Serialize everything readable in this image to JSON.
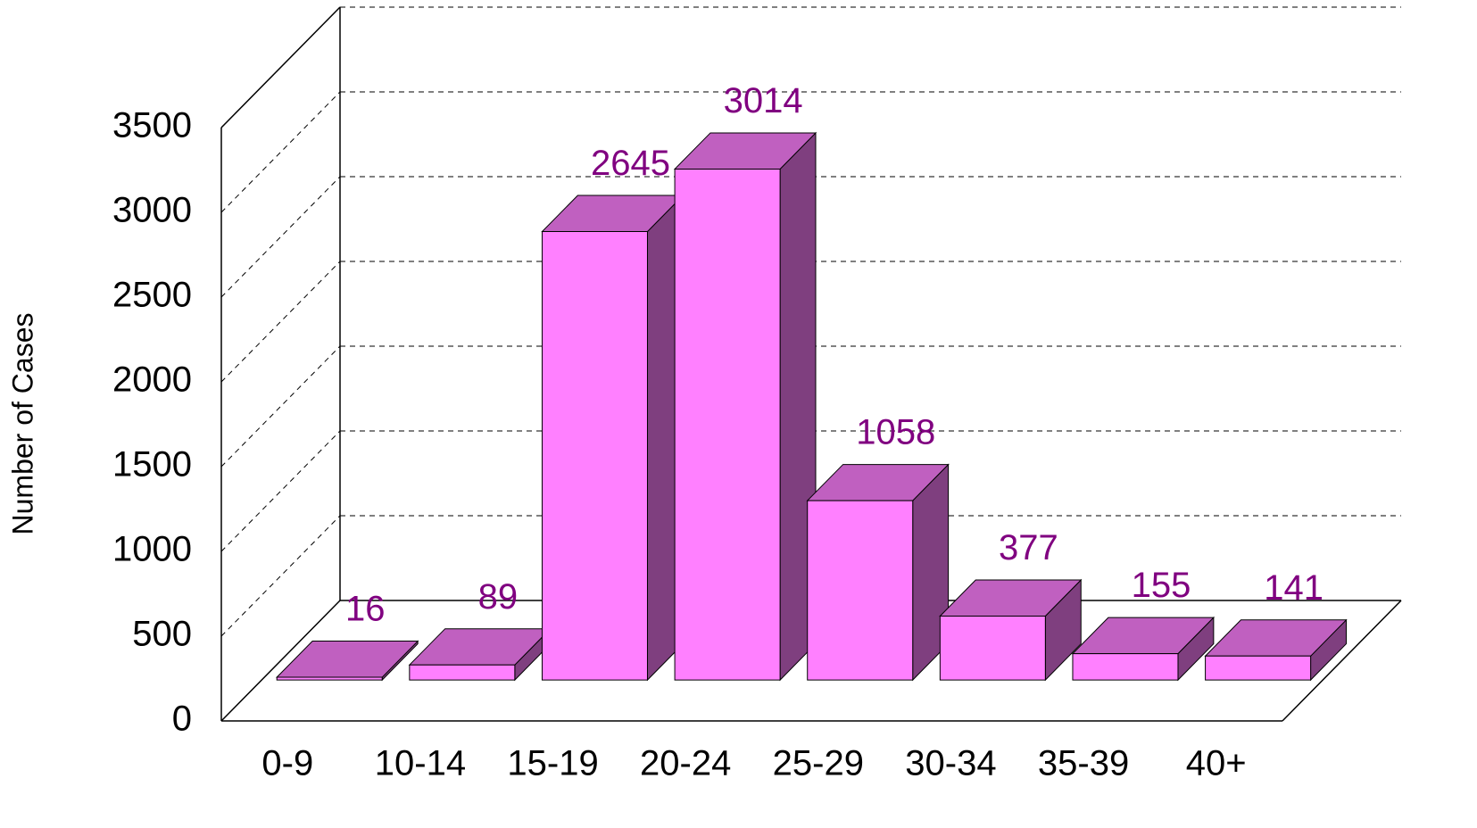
{
  "chart_data": {
    "type": "bar3d",
    "y_label": "Number of Cases",
    "categories": [
      "0-9",
      "10-14",
      "15-19",
      "20-24",
      "25-29",
      "30-34",
      "35-39",
      "40+"
    ],
    "values": [
      16,
      89,
      2645,
      3014,
      1058,
      377,
      155,
      141
    ],
    "colors": {
      "front": "#ff80ff",
      "top": "#c060c0",
      "side": "#7f3f7f",
      "label": "#800080"
    },
    "ylim": [
      0,
      3500
    ],
    "yticks": [
      0,
      500,
      1000,
      1500,
      2000,
      2500,
      3000,
      3500
    ],
    "grid": true
  }
}
